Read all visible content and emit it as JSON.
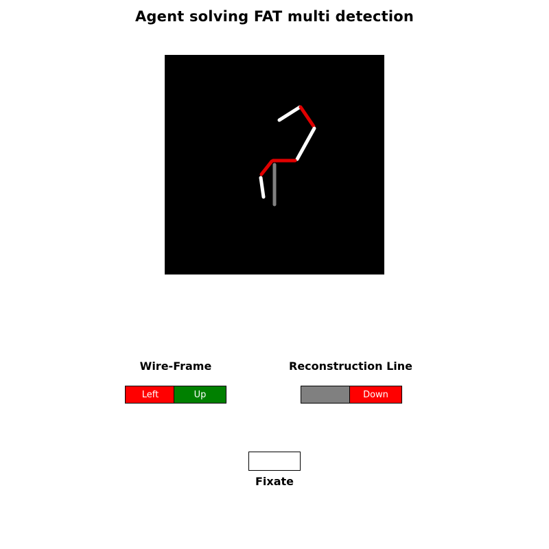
{
  "title": "Agent solving FAT multi detection",
  "wireframe": {
    "label": "Wire-Frame",
    "cells": [
      {
        "label": "Left",
        "color": "#ff0000"
      },
      {
        "label": "Up",
        "color": "#008000"
      }
    ]
  },
  "reconstruction": {
    "label": "Reconstruction Line",
    "cells": [
      {
        "label": "",
        "color": "#808080"
      },
      {
        "label": "Down",
        "color": "#ff0000"
      }
    ]
  },
  "fixate": {
    "label": "Fixate",
    "color": "#ffffff"
  },
  "canvas": {
    "background": "#000000",
    "colors": {
      "white": "#ffffff",
      "red": "#e00000",
      "gray": "#808080"
    }
  }
}
